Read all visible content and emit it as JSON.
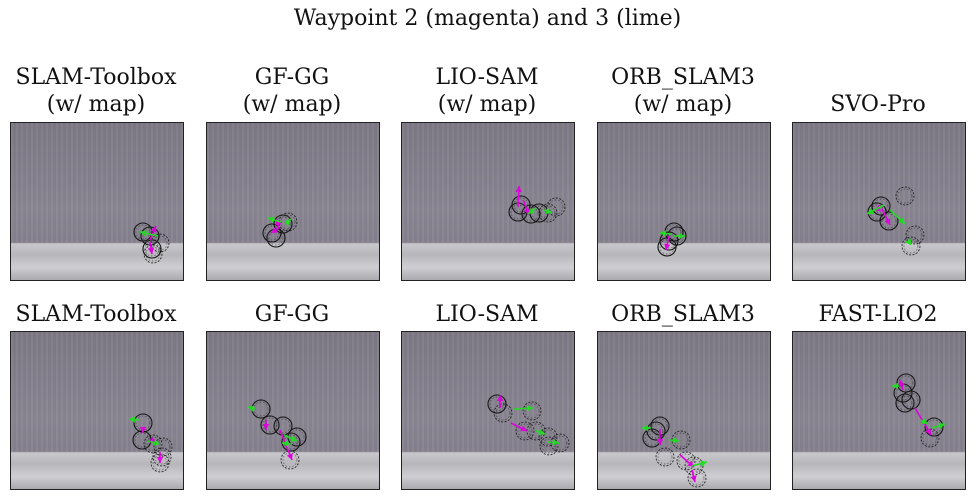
{
  "figure": {
    "title": "Waypoint 2 (magenta) and 3 (lime)"
  },
  "colors": {
    "waypoint2": "#e000e0",
    "waypoint3": "#22dd22",
    "circle": "#111111"
  },
  "panels": [
    {
      "line1": "SLAM-Toolbox",
      "line2": "(w/ map)",
      "circles": [
        [
          143,
          232,
          false
        ],
        [
          150,
          236,
          false
        ],
        [
          160,
          243,
          true
        ],
        [
          152,
          249,
          false
        ],
        [
          153,
          254,
          true
        ]
      ],
      "magenta": [
        [
          150,
          240,
          156,
          226
        ],
        [
          150,
          242,
          152,
          254
        ]
      ],
      "lime": [
        [
          158,
          236,
          140,
          232
        ]
      ]
    },
    {
      "line1": "GF-GG",
      "line2": "(w/ map)",
      "circles": [
        [
          283,
          224,
          false
        ],
        [
          288,
          222,
          true
        ],
        [
          272,
          233,
          false
        ],
        [
          276,
          238,
          false
        ]
      ],
      "magenta": [
        [
          279,
          228,
          277,
          219
        ],
        [
          279,
          228,
          271,
          233
        ]
      ],
      "lime": [
        [
          281,
          222,
          268,
          218
        ],
        [
          286,
          224,
          291,
          219
        ]
      ]
    },
    {
      "line1": "LIO-SAM",
      "line2": "(w/ map)",
      "circles": [
        [
          521,
          205,
          false
        ],
        [
          518,
          212,
          false
        ],
        [
          531,
          214,
          false
        ],
        [
          539,
          213,
          false
        ],
        [
          548,
          213,
          true
        ],
        [
          556,
          207,
          true
        ]
      ],
      "magenta": [
        [
          518,
          207,
          519,
          186
        ],
        [
          523,
          200,
          529,
          215
        ]
      ],
      "lime": [
        [
          536,
          208,
          528,
          214
        ],
        [
          544,
          210,
          552,
          213
        ]
      ]
    },
    {
      "line1": "ORB_SLAM3",
      "line2": "(w/ map)",
      "circles": [
        [
          674,
          232,
          false
        ],
        [
          669,
          241,
          false
        ],
        [
          667,
          247,
          false
        ],
        [
          677,
          236,
          false
        ]
      ],
      "magenta": [
        [
          669,
          236,
          666,
          250
        ]
      ],
      "lime": [
        [
          672,
          234,
          660,
          233
        ],
        [
          674,
          236,
          685,
          236
        ]
      ]
    },
    {
      "line1": "",
      "line2": "SVO-Pro",
      "circles": [
        [
          881,
          206,
          false
        ],
        [
          905,
          196,
          true
        ],
        [
          889,
          221,
          false
        ],
        [
          877,
          212,
          false
        ],
        [
          915,
          235,
          true
        ],
        [
          911,
          246,
          true
        ]
      ],
      "magenta": [
        [
          882,
          209,
          890,
          225
        ],
        [
          878,
          210,
          879,
          205
        ]
      ],
      "lime": [
        [
          884,
          205,
          867,
          214
        ],
        [
          890,
          210,
          905,
          224
        ],
        [
          910,
          242,
          905,
          242
        ]
      ]
    },
    {
      "line1": "",
      "line2": "SLAM-Toolbox",
      "circles": [
        [
          143,
          423,
          false
        ],
        [
          142,
          440,
          false
        ],
        [
          153,
          444,
          true
        ],
        [
          163,
          447,
          true
        ],
        [
          162,
          457,
          true
        ],
        [
          160,
          463,
          true
        ]
      ],
      "magenta": [
        [
          143,
          429,
          143,
          433
        ],
        [
          150,
          440,
          157,
          442
        ],
        [
          160,
          452,
          160,
          463
        ]
      ],
      "lime": [
        [
          140,
          420,
          129,
          419
        ],
        [
          148,
          441,
          160,
          444
        ]
      ]
    },
    {
      "line1": "",
      "line2": "GF-GG",
      "circles": [
        [
          261,
          409,
          false
        ],
        [
          270,
          425,
          false
        ],
        [
          283,
          426,
          false
        ],
        [
          297,
          437,
          false
        ],
        [
          291,
          442,
          false
        ],
        [
          290,
          460,
          true
        ]
      ],
      "magenta": [
        [
          266,
          420,
          266,
          430
        ],
        [
          280,
          430,
          292,
          460
        ]
      ],
      "lime": [
        [
          255,
          409,
          248,
          407
        ],
        [
          284,
          435,
          297,
          441
        ],
        [
          292,
          444,
          282,
          443
        ]
      ]
    },
    {
      "line1": "",
      "line2": "LIO-SAM",
      "circles": [
        [
          497,
          404,
          false
        ],
        [
          503,
          413,
          true
        ],
        [
          532,
          411,
          true
        ],
        [
          536,
          431,
          true
        ],
        [
          548,
          437,
          true
        ],
        [
          560,
          443,
          true
        ],
        [
          549,
          446,
          true
        ],
        [
          525,
          431,
          true
        ]
      ],
      "magenta": [
        [
          500,
          408,
          500,
          395
        ],
        [
          511,
          423,
          527,
          431
        ]
      ],
      "lime": [
        [
          514,
          409,
          533,
          408
        ],
        [
          536,
          431,
          545,
          434
        ],
        [
          548,
          442,
          559,
          443
        ]
      ]
    },
    {
      "line1": "",
      "line2": "ORB_SLAM3",
      "circles": [
        [
          660,
          426,
          false
        ],
        [
          656,
          431,
          false
        ],
        [
          652,
          438,
          false
        ],
        [
          681,
          440,
          true
        ],
        [
          694,
          466,
          true
        ],
        [
          697,
          478,
          true
        ],
        [
          686,
          461,
          true
        ],
        [
          665,
          457,
          true
        ]
      ],
      "magenta": [
        [
          660,
          429,
          660,
          445
        ],
        [
          680,
          455,
          694,
          467
        ],
        [
          692,
          470,
          695,
          482
        ]
      ],
      "lime": [
        [
          651,
          428,
          642,
          428
        ],
        [
          670,
          440,
          679,
          441
        ],
        [
          692,
          466,
          707,
          462
        ]
      ]
    },
    {
      "line1": "",
      "line2": "FAST-LIO2",
      "circles": [
        [
          906,
          383,
          false
        ],
        [
          903,
          393,
          false
        ],
        [
          911,
          400,
          false
        ],
        [
          905,
          403,
          false
        ],
        [
          934,
          427,
          false
        ],
        [
          930,
          438,
          true
        ]
      ],
      "magenta": [
        [
          903,
          390,
          900,
          380
        ],
        [
          915,
          408,
          931,
          435
        ]
      ],
      "lime": [
        [
          899,
          386,
          892,
          386
        ],
        [
          921,
          420,
          928,
          424
        ],
        [
          932,
          428,
          945,
          424
        ]
      ]
    }
  ]
}
